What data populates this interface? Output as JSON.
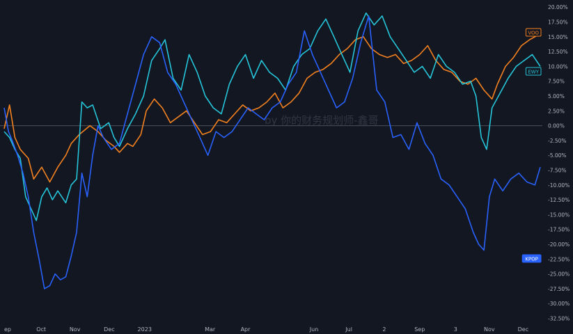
{
  "chart_data": {
    "type": "line",
    "title": "",
    "xlabel": "",
    "ylabel": "",
    "ylim": [
      -33.5,
      21.2
    ],
    "y_unit": "%",
    "grid": false,
    "legend": "right-edge price tags",
    "y_ticks": [
      "20.00%",
      "17.50%",
      "15.00%",
      "12.50%",
      "10.00%",
      "7.50%",
      "5.00%",
      "2.50%",
      "0.00%",
      "-2.50%",
      "-5.00%",
      "-7.50%",
      "-10.00%",
      "-12.50%",
      "-15.00%",
      "-17.50%",
      "-20.00%",
      "-22.50%",
      "-25.00%",
      "-27.50%",
      "-30.00%",
      "-32.50%"
    ],
    "y_tick_values": [
      20,
      17.5,
      15,
      12.5,
      10,
      7.5,
      5,
      2.5,
      0,
      -2.5,
      -5,
      -7.5,
      -10,
      -12.5,
      -15,
      -17.5,
      -20,
      -22.5,
      -25,
      -27.5,
      -30,
      -32.5
    ],
    "x_ticks": [
      {
        "label": "ep",
        "x": 0
      },
      {
        "label": "Oct",
        "x": 0.069
      },
      {
        "label": "Nov",
        "x": 0.132
      },
      {
        "label": "Dec",
        "x": 0.196
      },
      {
        "label": "2023",
        "x": 0.262
      },
      {
        "label": "Mar",
        "x": 0.384
      },
      {
        "label": "Apr",
        "x": 0.45
      },
      {
        "label": "Jun",
        "x": 0.578
      },
      {
        "label": "Jul",
        "x": 0.643
      },
      {
        "label": "2",
        "x": 0.709
      },
      {
        "label": "Sep",
        "x": 0.775
      },
      {
        "label": "3",
        "x": 0.842
      },
      {
        "label": "Nov",
        "x": 0.905
      },
      {
        "label": "Dec",
        "x": 0.968
      }
    ],
    "x_range": [
      0,
      1
    ],
    "zero_line": 0,
    "series": [
      {
        "name": "VOO",
        "color": "#f5821f",
        "tag_text": "VOO",
        "x": [
          0.0,
          0.01,
          0.02,
          0.03,
          0.045,
          0.055,
          0.07,
          0.085,
          0.1,
          0.115,
          0.125,
          0.14,
          0.16,
          0.175,
          0.19,
          0.205,
          0.215,
          0.23,
          0.24,
          0.255,
          0.265,
          0.28,
          0.295,
          0.31,
          0.325,
          0.34,
          0.355,
          0.37,
          0.385,
          0.4,
          0.415,
          0.43,
          0.445,
          0.46,
          0.475,
          0.49,
          0.505,
          0.52,
          0.535,
          0.55,
          0.565,
          0.58,
          0.595,
          0.61,
          0.625,
          0.64,
          0.655,
          0.67,
          0.685,
          0.7,
          0.715,
          0.73,
          0.745,
          0.76,
          0.775,
          0.79,
          0.805,
          0.82,
          0.835,
          0.85,
          0.865,
          0.88,
          0.895,
          0.91,
          0.92,
          0.935,
          0.95,
          0.965,
          0.98,
          0.99,
          1.0
        ],
        "values": [
          -0.5,
          3.5,
          -2.0,
          -4.0,
          -5.5,
          -9.0,
          -7.0,
          -9.5,
          -7.0,
          -5.0,
          -3.0,
          -1.5,
          0.0,
          -1.0,
          -2.5,
          -3.5,
          -4.5,
          -3.0,
          -3.5,
          -1.5,
          2.5,
          4.5,
          3.0,
          0.5,
          1.5,
          2.5,
          0.5,
          -1.5,
          -1.0,
          1.0,
          0.5,
          2.0,
          3.5,
          2.5,
          3.0,
          4.0,
          5.5,
          3.0,
          4.0,
          5.5,
          8.0,
          9.0,
          9.5,
          10.5,
          12.0,
          13.0,
          14.5,
          15.0,
          13.0,
          12.0,
          11.5,
          12.0,
          10.5,
          11.0,
          12.0,
          13.5,
          11.0,
          9.5,
          9.0,
          7.5,
          7.0,
          8.0,
          6.0,
          4.5,
          7.0,
          10.0,
          11.5,
          13.5,
          14.5,
          15.0,
          15.5
        ]
      },
      {
        "name": "EWY",
        "color": "#26c6da",
        "tag_text": "EWY",
        "x": [
          0.0,
          0.01,
          0.02,
          0.03,
          0.04,
          0.05,
          0.06,
          0.07,
          0.08,
          0.09,
          0.1,
          0.115,
          0.125,
          0.135,
          0.145,
          0.155,
          0.165,
          0.18,
          0.195,
          0.205,
          0.215,
          0.23,
          0.245,
          0.26,
          0.275,
          0.29,
          0.3,
          0.315,
          0.33,
          0.345,
          0.36,
          0.375,
          0.39,
          0.405,
          0.42,
          0.435,
          0.45,
          0.465,
          0.48,
          0.495,
          0.51,
          0.525,
          0.54,
          0.555,
          0.57,
          0.585,
          0.6,
          0.615,
          0.63,
          0.645,
          0.66,
          0.675,
          0.69,
          0.705,
          0.72,
          0.735,
          0.75,
          0.765,
          0.78,
          0.795,
          0.81,
          0.825,
          0.84,
          0.855,
          0.87,
          0.88,
          0.89,
          0.9,
          0.91,
          0.925,
          0.94,
          0.955,
          0.97,
          0.985,
          1.0
        ],
        "values": [
          -1.0,
          -2.0,
          -4.0,
          -5.5,
          -12.0,
          -14.0,
          -16.0,
          -12.0,
          -10.5,
          -12.5,
          -11.0,
          -13.0,
          -10.0,
          -9.0,
          4.0,
          3.0,
          3.5,
          -0.5,
          0.5,
          -2.0,
          -3.5,
          -0.5,
          2.0,
          5.0,
          11.0,
          13.0,
          14.5,
          8.0,
          6.0,
          12.0,
          9.0,
          5.0,
          3.0,
          2.0,
          7.0,
          10.0,
          12.0,
          8.0,
          11.0,
          9.0,
          8.0,
          6.0,
          10.0,
          12.0,
          13.0,
          16.0,
          18.0,
          15.0,
          12.0,
          9.0,
          16.0,
          19.0,
          17.0,
          18.5,
          15.0,
          13.0,
          11.0,
          9.0,
          10.0,
          8.0,
          12.0,
          10.0,
          9.0,
          7.0,
          7.5,
          5.0,
          -2.0,
          -4.0,
          3.0,
          5.5,
          8.0,
          10.0,
          11.0,
          12.0,
          10.0
        ]
      },
      {
        "name": "KPOP",
        "color": "#2962ff",
        "tag_text": "KPOP",
        "x": [
          0.0,
          0.008,
          0.015,
          0.025,
          0.035,
          0.045,
          0.055,
          0.065,
          0.075,
          0.085,
          0.095,
          0.105,
          0.115,
          0.125,
          0.135,
          0.145,
          0.155,
          0.165,
          0.175,
          0.185,
          0.2,
          0.215,
          0.23,
          0.245,
          0.26,
          0.275,
          0.29,
          0.305,
          0.32,
          0.335,
          0.35,
          0.365,
          0.38,
          0.395,
          0.41,
          0.425,
          0.44,
          0.455,
          0.47,
          0.485,
          0.5,
          0.515,
          0.53,
          0.545,
          0.56,
          0.575,
          0.59,
          0.605,
          0.62,
          0.635,
          0.65,
          0.665,
          0.68,
          0.695,
          0.71,
          0.725,
          0.74,
          0.755,
          0.77,
          0.785,
          0.8,
          0.815,
          0.83,
          0.845,
          0.86,
          0.875,
          0.885,
          0.895,
          0.905,
          0.915,
          0.93,
          0.945,
          0.96,
          0.975,
          0.99,
          1.0
        ],
        "values": [
          3.0,
          -1.0,
          -2.5,
          -5.0,
          -8.0,
          -12.0,
          -18.0,
          -22.5,
          -27.5,
          -27.0,
          -25.0,
          -26.0,
          -25.5,
          -22.0,
          -18.0,
          -8.0,
          -12.0,
          -5.0,
          0.0,
          -2.0,
          -4.0,
          -3.0,
          2.0,
          7.0,
          12.0,
          15.0,
          14.0,
          9.0,
          7.0,
          4.0,
          1.0,
          -2.0,
          -5.0,
          -1.0,
          -2.0,
          -1.0,
          1.0,
          3.0,
          2.0,
          1.0,
          3.0,
          4.0,
          7.0,
          9.0,
          16.0,
          12.0,
          9.0,
          6.0,
          3.0,
          4.0,
          8.0,
          14.0,
          18.5,
          6.0,
          4.0,
          -2.0,
          -1.5,
          -4.0,
          0.5,
          -3.0,
          -5.0,
          -9.0,
          -10.0,
          -12.0,
          -14.0,
          -18.0,
          -20.0,
          -21.0,
          -12.0,
          -9.0,
          -11.0,
          -9.0,
          -8.0,
          -9.5,
          -10.0,
          -7.0
        ]
      }
    ],
    "tags": [
      {
        "series": "VOO",
        "label": "VOO",
        "bg": "#131722",
        "border": "#f5821f",
        "text_color": "#f5821f"
      },
      {
        "series": "EWY",
        "label": "EWY",
        "bg": "#131722",
        "border": "#26c6da",
        "text_color": "#26c6da"
      },
      {
        "series": "KPOP",
        "label": "KPOP",
        "bg": "#2962ff",
        "border": "#2962ff",
        "text_color": "#ffffff"
      }
    ],
    "watermark": "by 你的财务规划师-鑫哥",
    "colors": {
      "background": "#131722",
      "axis_text": "#b2b5be",
      "zero_line": "#4a4f5c"
    }
  }
}
